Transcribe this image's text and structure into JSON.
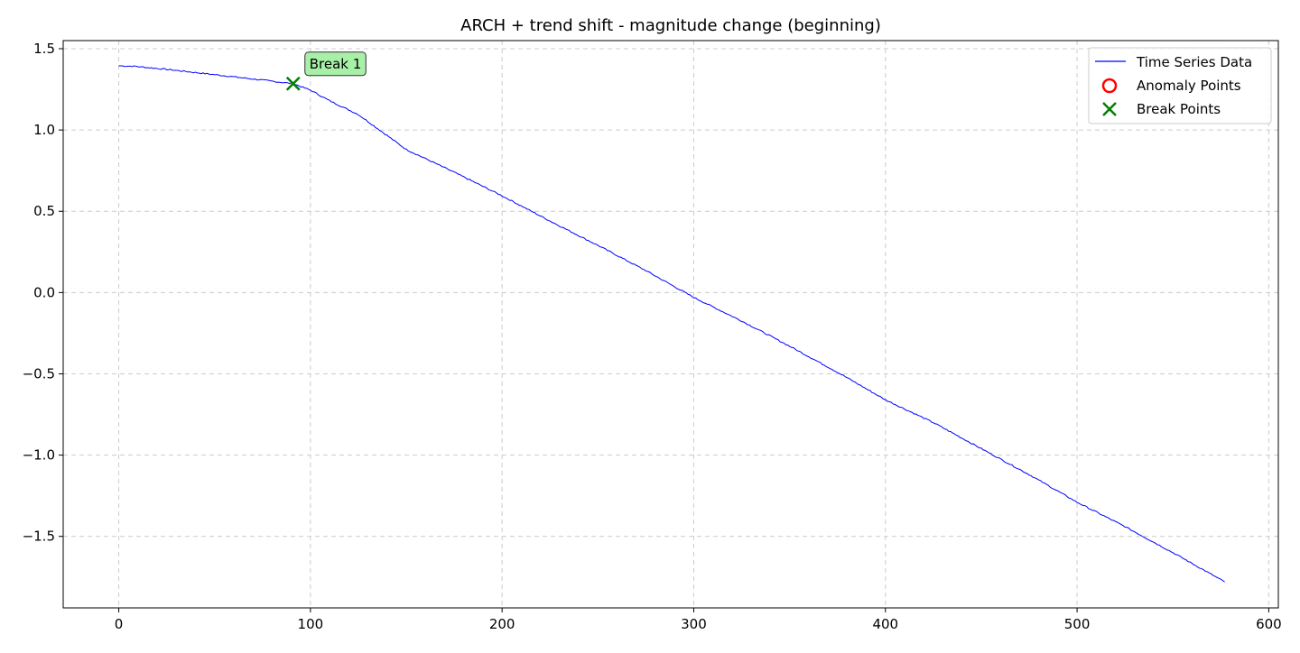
{
  "chart_data": {
    "type": "line",
    "title": "ARCH + trend shift - magnitude change (beginning)",
    "xlabel": "",
    "ylabel": "",
    "xlim": [
      -29,
      605
    ],
    "ylim": [
      -1.94,
      1.55
    ],
    "x_ticks": [
      0,
      100,
      200,
      300,
      400,
      500,
      600
    ],
    "x_tick_labels": [
      "0",
      "100",
      "200",
      "300",
      "400",
      "500",
      "600"
    ],
    "y_ticks": [
      1.5,
      1.0,
      0.5,
      0.0,
      -0.5,
      -1.0,
      -1.5
    ],
    "y_tick_labels": [
      "1.5",
      "1.0",
      "0.5",
      "0.0",
      "−0.5",
      "−1.0",
      "−1.5"
    ],
    "grid": true,
    "legend_position": "top-right",
    "series": [
      {
        "name": "Time Series Data",
        "color": "#0000ff",
        "points": [
          [
            0,
            1.395
          ],
          [
            8,
            1.392
          ],
          [
            15,
            1.384
          ],
          [
            25,
            1.373
          ],
          [
            35,
            1.36
          ],
          [
            45,
            1.347
          ],
          [
            55,
            1.334
          ],
          [
            65,
            1.32
          ],
          [
            75,
            1.307
          ],
          [
            85,
            1.293
          ],
          [
            91,
            1.285
          ],
          [
            100,
            1.245
          ],
          [
            110,
            1.18
          ],
          [
            125,
            1.095
          ],
          [
            150,
            0.88
          ],
          [
            175,
            0.74
          ],
          [
            200,
            0.595
          ],
          [
            225,
            0.44
          ],
          [
            250,
            0.29
          ],
          [
            275,
            0.135
          ],
          [
            300,
            -0.03
          ],
          [
            325,
            -0.175
          ],
          [
            350,
            -0.33
          ],
          [
            375,
            -0.49
          ],
          [
            400,
            -0.66
          ],
          [
            425,
            -0.8
          ],
          [
            450,
            -0.96
          ],
          [
            475,
            -1.12
          ],
          [
            500,
            -1.29
          ],
          [
            525,
            -1.44
          ],
          [
            550,
            -1.6
          ],
          [
            565,
            -1.7
          ],
          [
            577,
            -1.78
          ]
        ]
      }
    ],
    "anomaly_points": {
      "name": "Anomaly Points",
      "color": "#ff0000",
      "points": []
    },
    "break_points": {
      "name": "Break Points",
      "color": "#008000",
      "points": [
        [
          91,
          1.285
        ]
      ]
    },
    "annotations": [
      {
        "text": "Break 1",
        "x": 91,
        "y": 1.285,
        "box_color": "#a8f0a8"
      }
    ],
    "legend": [
      "Time Series Data",
      "Anomaly Points",
      "Break Points"
    ]
  }
}
